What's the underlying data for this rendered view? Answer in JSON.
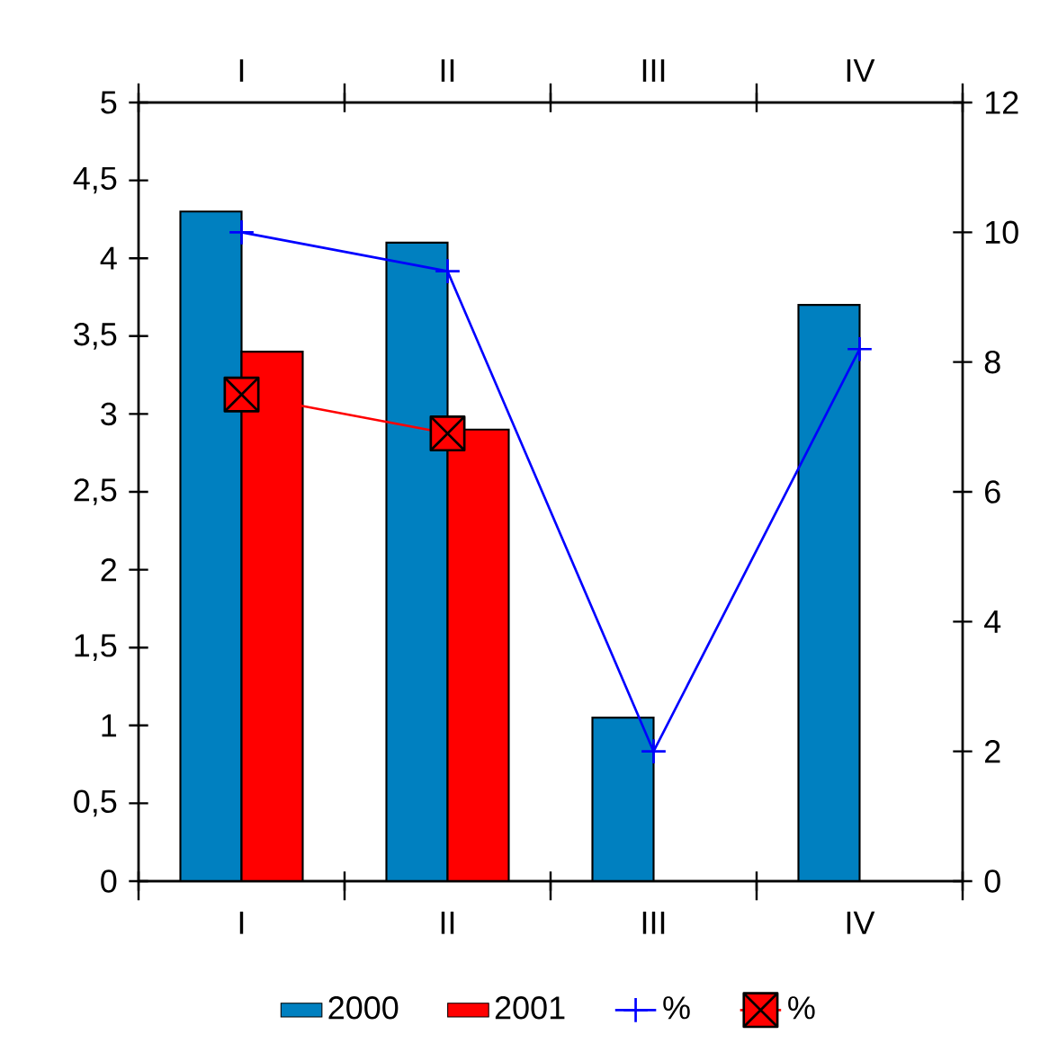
{
  "chart_data": {
    "type": "bar",
    "categories": [
      "I",
      "II",
      "III",
      "IV"
    ],
    "series": [
      {
        "name": "2000",
        "color": "#0080c0",
        "values": [
          4.3,
          4.1,
          1.05,
          3.7
        ]
      },
      {
        "name": "2001",
        "color": "#ff0000",
        "values": [
          3.4,
          2.9,
          null,
          null
        ]
      },
      {
        "name": "%",
        "type": "line",
        "axis": "y2",
        "color": "#0000ff",
        "marker": "cross",
        "values": [
          10,
          9.4,
          2,
          8.2
        ]
      },
      {
        "name": "%",
        "type": "line",
        "axis": "y2",
        "color": "#ff0000",
        "marker": "square",
        "values": [
          7.5,
          6.9,
          null,
          null
        ]
      }
    ],
    "ylim": [
      0,
      5
    ],
    "yticks": [
      0,
      {
        "value": 0.5,
        "label": "0,5"
      },
      1,
      {
        "value": 1.5,
        "label": "1,5"
      },
      2,
      {
        "value": 2.5,
        "label": "2,5"
      },
      3,
      {
        "value": 3.5,
        "label": "3,5"
      },
      4,
      {
        "value": 4.5,
        "label": "4,5"
      },
      5
    ],
    "y2lim": [
      0,
      12
    ],
    "y2ticks": [
      0,
      2,
      4,
      6,
      8,
      10,
      12
    ],
    "legend": "bottom"
  }
}
